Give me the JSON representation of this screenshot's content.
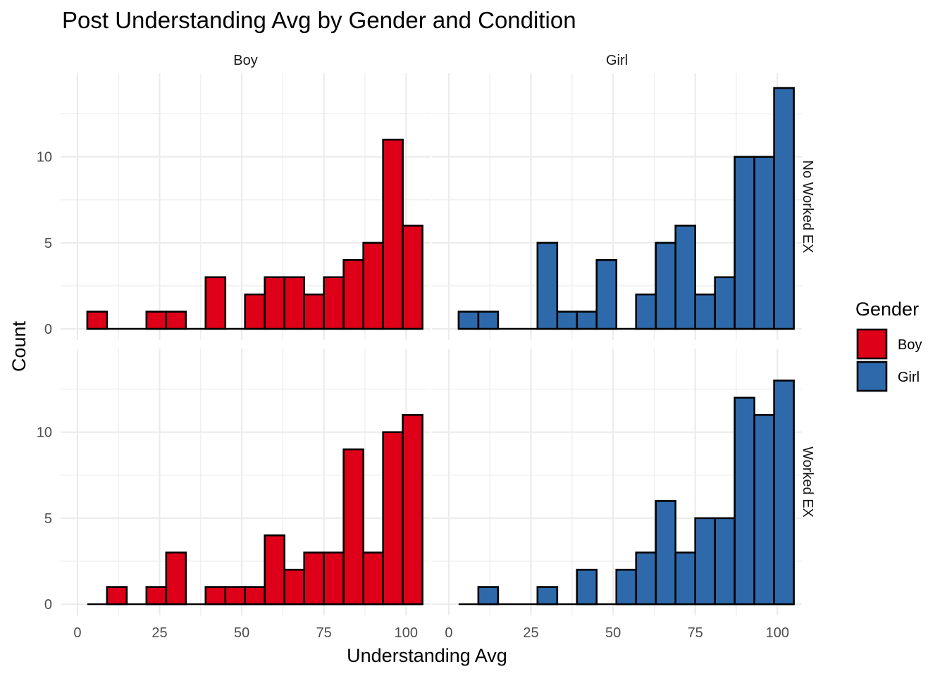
{
  "chart_data": {
    "type": "histogram",
    "title": "Post Understanding Avg by Gender and Condition",
    "xlabel": "Understanding Avg",
    "ylabel": "Count",
    "xlim": [
      0,
      100
    ],
    "ylim": [
      0,
      14
    ],
    "x_ticks": [
      "0",
      "25",
      "50",
      "75",
      "100"
    ],
    "y_ticks": [
      "0",
      "5",
      "10"
    ],
    "bin_width": 6,
    "bin_centers": [
      6,
      12,
      18,
      24,
      30,
      36,
      42,
      48,
      54,
      60,
      66,
      72,
      78,
      84,
      90,
      96,
      102
    ],
    "columns": [
      "Boy",
      "Girl"
    ],
    "rows": [
      "No Worked EX",
      "Worked EX"
    ],
    "legend": {
      "title": "Gender",
      "position": "right",
      "entries": [
        {
          "label": "Boy",
          "color": "#DE0018"
        },
        {
          "label": "Girl",
          "color": "#2E6AAB"
        }
      ]
    },
    "panels": [
      {
        "gender": "Boy",
        "condition": "No Worked EX",
        "color": "#DE0018",
        "counts": [
          1,
          0,
          0,
          1,
          1,
          0,
          3,
          0,
          2,
          3,
          3,
          2,
          3,
          4,
          5,
          11,
          6
        ]
      },
      {
        "gender": "Girl",
        "condition": "No Worked EX",
        "color": "#2E6AAB",
        "counts": [
          1,
          1,
          0,
          0,
          5,
          1,
          1,
          4,
          0,
          2,
          5,
          6,
          2,
          3,
          10,
          10,
          14
        ]
      },
      {
        "gender": "Boy",
        "condition": "Worked EX",
        "color": "#DE0018",
        "counts": [
          0,
          1,
          0,
          1,
          3,
          0,
          1,
          1,
          1,
          4,
          2,
          3,
          3,
          9,
          3,
          10,
          11
        ]
      },
      {
        "gender": "Girl",
        "condition": "Worked EX",
        "color": "#2E6AAB",
        "counts": [
          0,
          1,
          0,
          0,
          1,
          0,
          2,
          0,
          2,
          3,
          6,
          3,
          5,
          5,
          12,
          11,
          13
        ]
      }
    ]
  }
}
